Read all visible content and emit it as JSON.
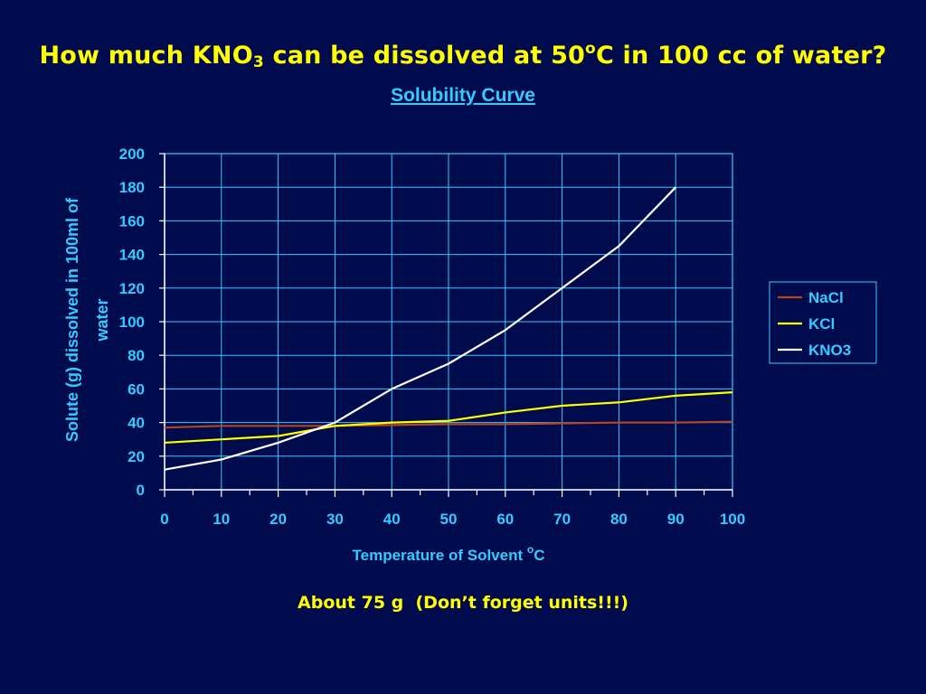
{
  "slide": {
    "question_prefix": "How much KNO",
    "question_sub": "3",
    "question_mid": " can be dissolved at 50",
    "question_sup": "o",
    "question_suffix": "C in 100 cc of water?",
    "answer": "About 75 g  (Don’t forget units!!!)"
  },
  "colors": {
    "background": "#000b4d",
    "text_yellow": "#ffff00",
    "axis_cyan": "#33ccff",
    "NaCl": "#b5441f",
    "KCl": "#ffff00",
    "KNO3": "#ffffff"
  },
  "chart_data": {
    "type": "line",
    "title": "Solubility Curve",
    "xlabel_prefix": "Temperature of Solvent ",
    "xlabel_sup": "o",
    "xlabel_suffix": "C",
    "ylabel": "Solute (g) dissolved in 100ml of water",
    "xlim": [
      0,
      100
    ],
    "ylim": [
      0,
      200
    ],
    "xticks": [
      0,
      10,
      20,
      30,
      40,
      50,
      60,
      70,
      80,
      90,
      100
    ],
    "yticks": [
      0,
      20,
      40,
      60,
      80,
      100,
      120,
      140,
      160,
      180,
      200
    ],
    "grid": true,
    "legend_position": "right",
    "series": [
      {
        "name": "NaCl",
        "x": [
          0,
          10,
          20,
          30,
          40,
          50,
          60,
          70,
          80,
          90,
          100
        ],
        "y": [
          37,
          38,
          38,
          38,
          38.5,
          39,
          39,
          39.5,
          40,
          40,
          40.5
        ]
      },
      {
        "name": "KCl",
        "x": [
          0,
          10,
          20,
          30,
          40,
          50,
          60,
          70,
          80,
          90,
          100
        ],
        "y": [
          28,
          30,
          32,
          38,
          40,
          41,
          46,
          50,
          52,
          56,
          58
        ]
      },
      {
        "name": "KNO3",
        "x": [
          0,
          10,
          20,
          30,
          40,
          50,
          60,
          70,
          80,
          90
        ],
        "y": [
          12,
          18,
          28,
          40,
          60,
          75,
          95,
          120,
          145,
          180
        ]
      }
    ]
  }
}
